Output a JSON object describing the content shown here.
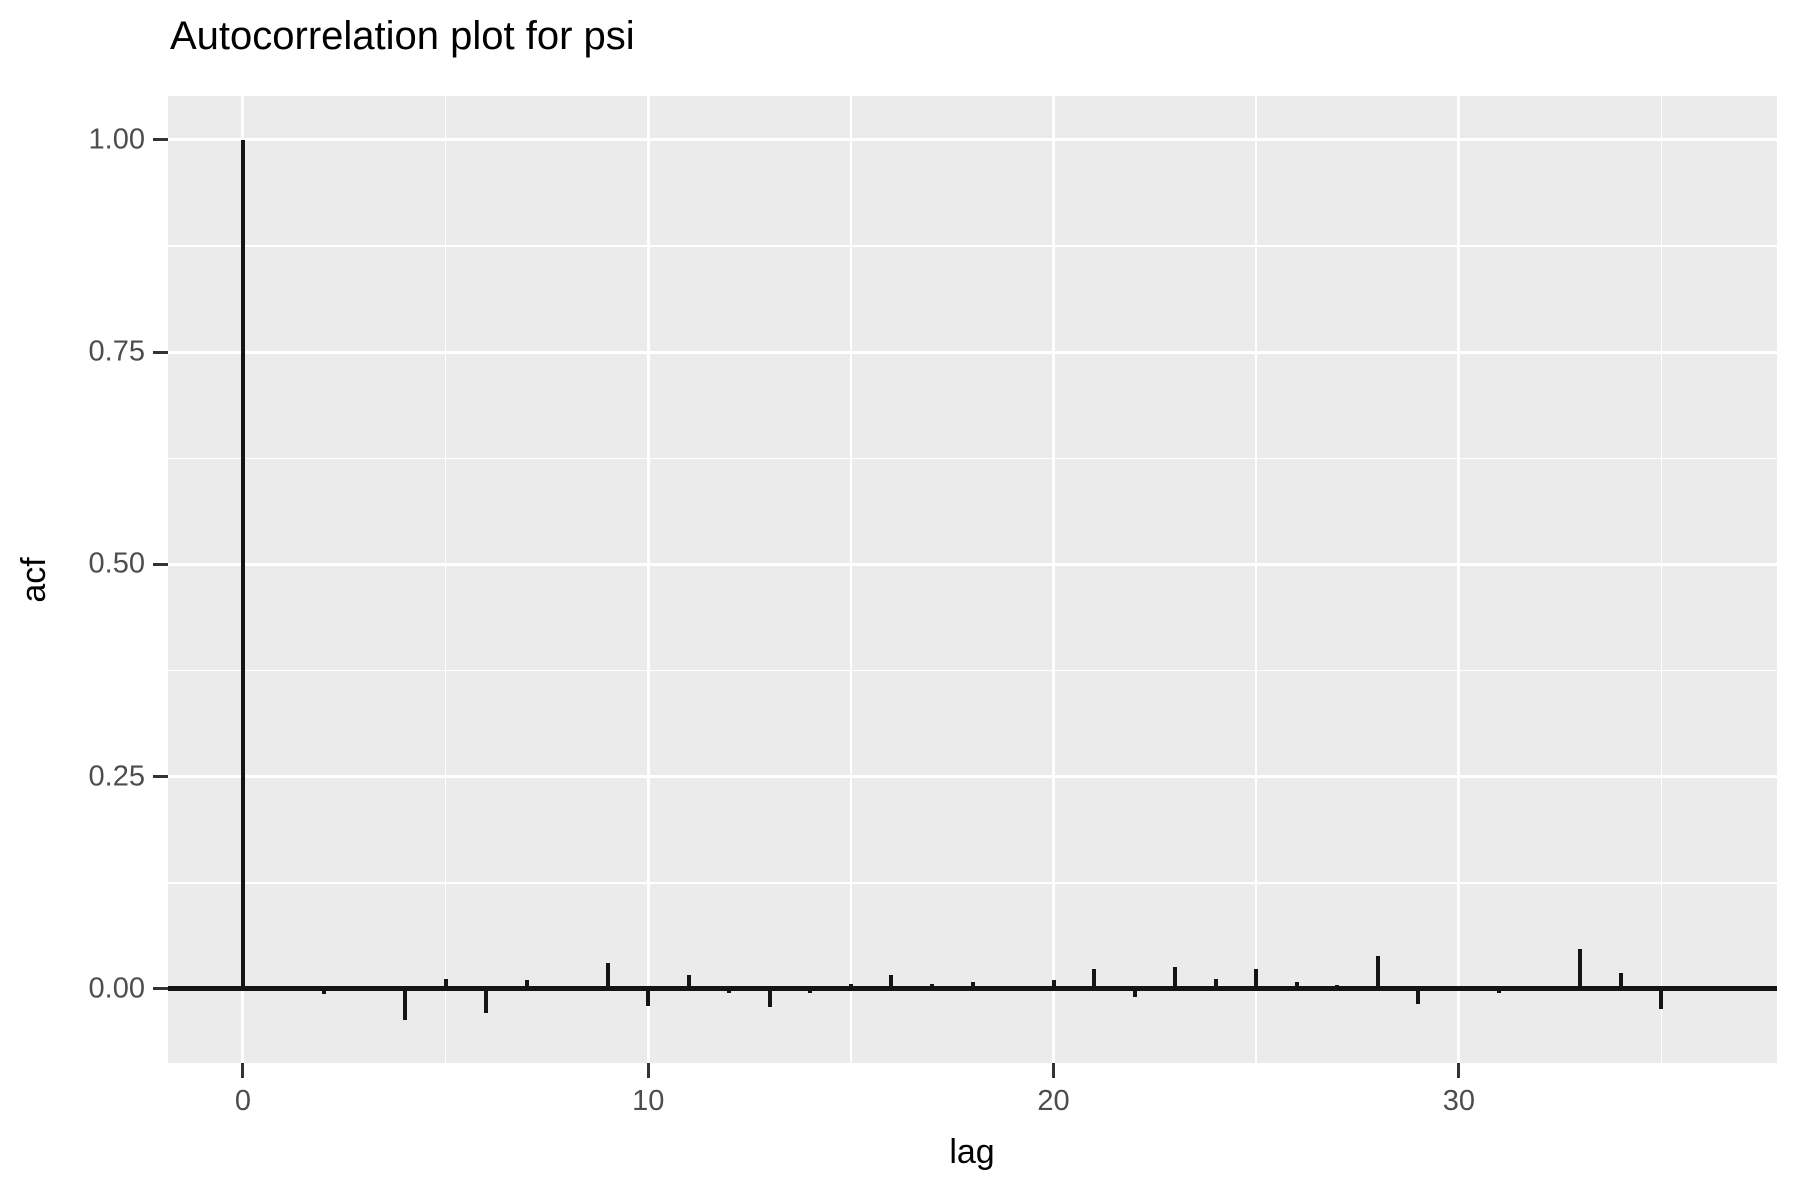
{
  "chart_data": {
    "type": "bar",
    "title": "Autocorrelation plot for psi",
    "xlabel": "lag",
    "ylabel": "acf",
    "x": [
      0,
      1,
      2,
      3,
      4,
      5,
      6,
      7,
      8,
      9,
      10,
      11,
      12,
      13,
      14,
      15,
      16,
      17,
      18,
      19,
      20,
      21,
      22,
      23,
      24,
      25,
      26,
      27,
      28,
      29,
      30,
      31,
      32,
      33,
      34,
      35,
      36
    ],
    "values": [
      1.0,
      0.0,
      -0.006,
      0.0,
      -0.037,
      0.012,
      -0.028,
      0.01,
      0.004,
      0.03,
      -0.02,
      0.017,
      -0.005,
      -0.021,
      -0.005,
      0.006,
      0.017,
      0.006,
      0.008,
      0.002,
      0.011,
      0.024,
      -0.01,
      0.026,
      0.012,
      0.024,
      0.008,
      0.005,
      0.039,
      -0.018,
      0.0,
      -0.005,
      0.0,
      0.047,
      0.019,
      -0.024,
      0.0
    ],
    "xlim": [
      -1.85,
      37.85
    ],
    "ylim": [
      -0.0872,
      1.0518
    ],
    "x_ticks": [
      {
        "value": 0,
        "label": "0"
      },
      {
        "value": 10,
        "label": "10"
      },
      {
        "value": 20,
        "label": "20"
      },
      {
        "value": 30,
        "label": "30"
      }
    ],
    "x_minor_gridlines": [
      5,
      15,
      25,
      35
    ],
    "y_ticks": [
      {
        "value": 0.0,
        "label": "0.00"
      },
      {
        "value": 0.25,
        "label": "0.25"
      },
      {
        "value": 0.5,
        "label": "0.50"
      },
      {
        "value": 0.75,
        "label": "0.75"
      },
      {
        "value": 1.0,
        "label": "1.00"
      }
    ],
    "y_minor_gridlines": [
      0.125,
      0.375,
      0.625,
      0.875
    ],
    "zero_line": true,
    "legend": "none",
    "grid": "on",
    "colors": {
      "panel_background": "#EBEBEB",
      "gridline": "#FFFFFF",
      "bar": "#141414",
      "zero_line": "#141414",
      "tick_label": "#4D4D4D",
      "tick_mark": "#333333",
      "title": "#000000"
    }
  }
}
